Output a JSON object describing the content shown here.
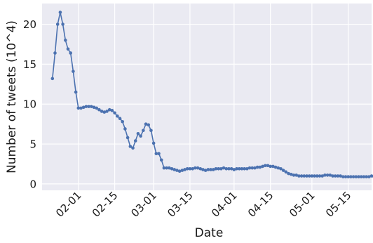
{
  "chart_data": {
    "type": "line",
    "xlabel": "Date",
    "ylabel": "Number of tweets (10^4)",
    "x_unit": "day",
    "x_start": "2020-01-22",
    "x_range": [
      "2020-01-18",
      "2020-05-24"
    ],
    "ylim": [
      -0.8,
      22.6
    ],
    "y_ticks": [
      0,
      5,
      10,
      15,
      20
    ],
    "x_ticks": [
      {
        "date": "2020-02-01",
        "label": "02-01"
      },
      {
        "date": "2020-02-15",
        "label": "02-15"
      },
      {
        "date": "2020-03-01",
        "label": "03-01"
      },
      {
        "date": "2020-03-15",
        "label": "03-15"
      },
      {
        "date": "2020-04-01",
        "label": "04-01"
      },
      {
        "date": "2020-04-15",
        "label": "04-15"
      },
      {
        "date": "2020-05-01",
        "label": "05-01"
      },
      {
        "date": "2020-05-15",
        "label": "05-15"
      }
    ],
    "grid": true,
    "colors": {
      "line": "#4c72b0",
      "background": "#eaeaf2",
      "grid": "#ffffff"
    },
    "series": [
      {
        "values": [
          13.2,
          16.4,
          20.0,
          21.5,
          20.0,
          18.0,
          16.9,
          16.4,
          14.1,
          11.5,
          9.5,
          9.5,
          9.6,
          9.7,
          9.7,
          9.7,
          9.6,
          9.5,
          9.3,
          9.1,
          9.0,
          9.1,
          9.3,
          9.2,
          8.9,
          8.5,
          8.2,
          7.8,
          6.9,
          5.8,
          4.7,
          4.5,
          5.4,
          6.3,
          6.0,
          6.7,
          7.5,
          7.4,
          6.7,
          5.1,
          3.8,
          3.8,
          3.0,
          2.0,
          2.0,
          2.0,
          1.9,
          1.8,
          1.7,
          1.6,
          1.7,
          1.8,
          1.9,
          1.9,
          1.9,
          2.0,
          2.0,
          1.9,
          1.8,
          1.7,
          1.8,
          1.8,
          1.8,
          1.9,
          1.9,
          1.9,
          2.0,
          1.9,
          1.9,
          1.9,
          1.8,
          1.9,
          1.9,
          1.9,
          1.9,
          1.9,
          2.0,
          2.0,
          2.0,
          2.1,
          2.1,
          2.2,
          2.3,
          2.3,
          2.2,
          2.2,
          2.1,
          2.0,
          1.9,
          1.7,
          1.5,
          1.3,
          1.2,
          1.1,
          1.1,
          1.0,
          1.0,
          1.0,
          1.0,
          1.0,
          1.0,
          1.0,
          1.0,
          1.0,
          1.0,
          1.1,
          1.1,
          1.1,
          1.0,
          1.0,
          1.0,
          1.0,
          0.9,
          0.9,
          0.9,
          0.9,
          0.9,
          0.9,
          0.9,
          0.9,
          0.9,
          0.9,
          0.9,
          1.0,
          0.9
        ]
      }
    ]
  }
}
